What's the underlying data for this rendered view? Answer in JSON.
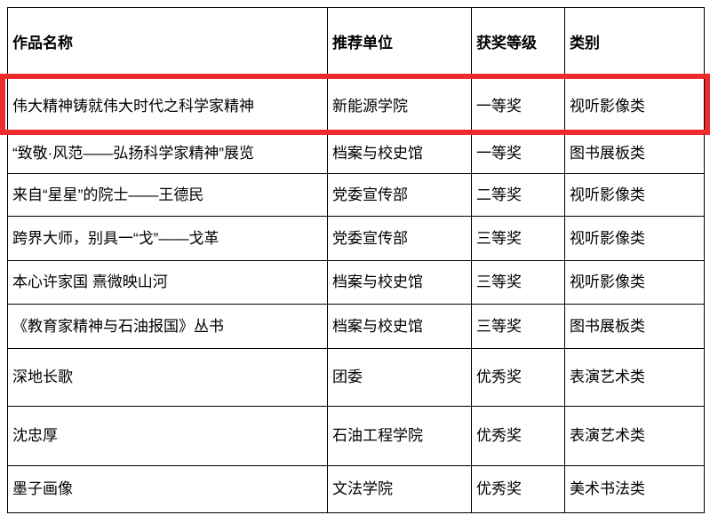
{
  "table": {
    "headers": [
      "作品名称",
      "推荐单位",
      "获奖等级",
      "类别"
    ],
    "rows": [
      {
        "title": "伟大精神铸就伟大时代之科学家精神",
        "unit": "新能源学院",
        "level": "一等奖",
        "category": "视听影像类"
      },
      {
        "title": "“致敬·风范——弘扬科学家精神”展览",
        "unit": "档案与校史馆",
        "level": "一等奖",
        "category": "图书展板类"
      },
      {
        "title": "来自“星星”的院士——王德民",
        "unit": "党委宣传部",
        "level": "二等奖",
        "category": "视听影像类"
      },
      {
        "title": "跨界大师，别具一“戈”——戈革",
        "unit": "党委宣传部",
        "level": "三等奖",
        "category": "视听影像类"
      },
      {
        "title": "本心许家国 熹微映山河",
        "unit": "档案与校史馆",
        "level": "三等奖",
        "category": "视听影像类"
      },
      {
        "title": "《教育家精神与石油报国》丛书",
        "unit": "档案与校史馆",
        "level": "三等奖",
        "category": "图书展板类"
      },
      {
        "title": "深地长歌",
        "unit": "团委",
        "level": "优秀奖",
        "category": "表演艺术类"
      },
      {
        "title": "沈忠厚",
        "unit": "石油工程学院",
        "level": "优秀奖",
        "category": "表演艺术类"
      },
      {
        "title": "墨子画像",
        "unit": "文法学院",
        "level": "优秀奖",
        "category": "美术书法类"
      }
    ]
  },
  "highlight": {
    "color": "#ee2c2c",
    "highlighted_row_index": 0
  }
}
